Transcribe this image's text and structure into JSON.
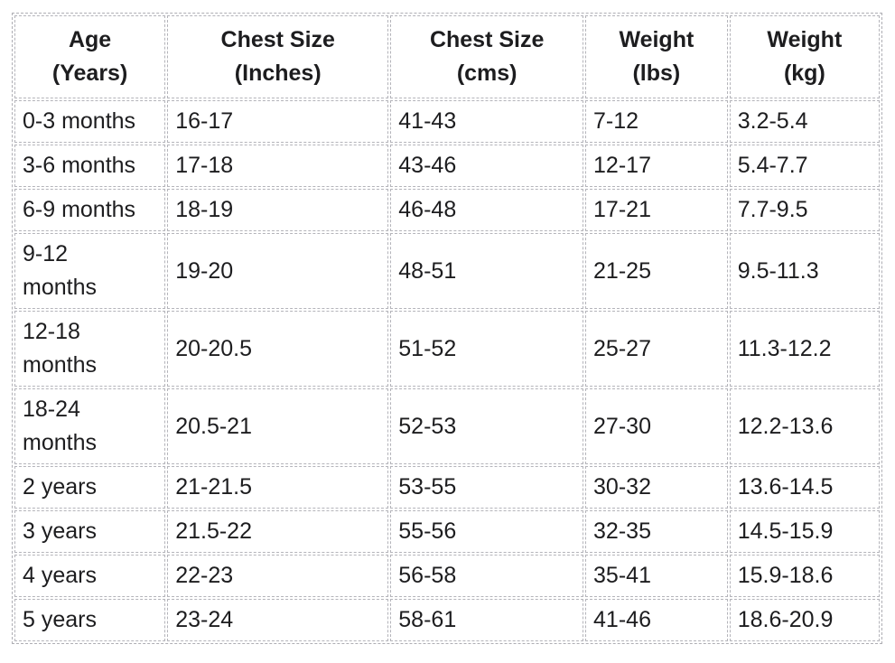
{
  "chart_data": {
    "type": "table",
    "columns": [
      "Age\n(Years)",
      "Chest Size\n(Inches)",
      "Chest Size\n(cms)",
      "Weight\n(lbs)",
      "Weight\n(kg)"
    ],
    "rows": [
      [
        "0-3 months",
        "16-17",
        "41-43",
        "7-12",
        "3.2-5.4"
      ],
      [
        "3-6 months",
        "17-18",
        "43-46",
        "12-17",
        "5.4-7.7"
      ],
      [
        "6-9 months",
        "18-19",
        "46-48",
        "17-21",
        "7.7-9.5"
      ],
      [
        "9-12\nmonths",
        "19-20",
        "48-51",
        "21-25",
        "9.5-11.3"
      ],
      [
        "12-18\nmonths",
        "20-20.5",
        "51-52",
        "25-27",
        "11.3-12.2"
      ],
      [
        "18-24\nmonths",
        "20.5-21",
        "52-53",
        "27-30",
        "12.2-13.6"
      ],
      [
        "2 years",
        "21-21.5",
        "53-55",
        "30-32",
        "13.6-14.5"
      ],
      [
        "3 years",
        "21.5-22",
        "55-56",
        "32-35",
        "14.5-15.9"
      ],
      [
        "4 years",
        "22-23",
        "56-58",
        "35-41",
        "15.9-18.6"
      ],
      [
        "5 years",
        "23-24",
        "58-61",
        "41-46",
        "18.6-20.9"
      ]
    ],
    "layout": {
      "grid": "dashed",
      "legend": "none",
      "header_align": "center",
      "body_align": "left"
    },
    "colors": {
      "text": "#1d1d1f",
      "border": "#b4b4ba",
      "background": "#ffffff"
    }
  }
}
